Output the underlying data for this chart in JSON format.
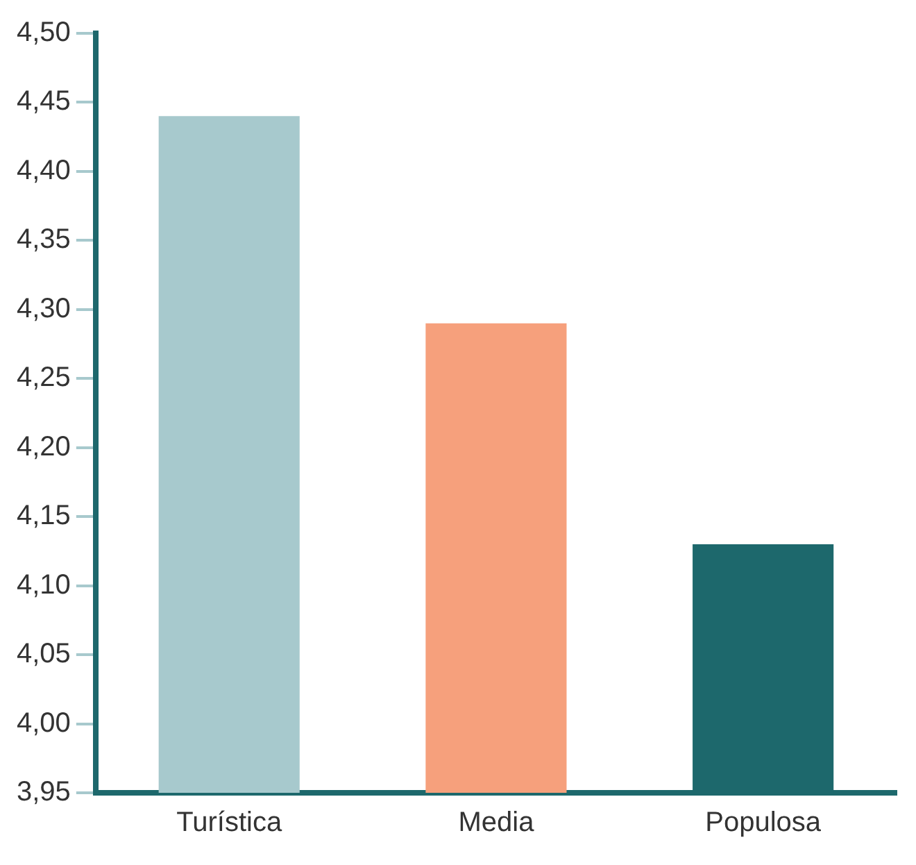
{
  "chart_data": {
    "type": "bar",
    "categories": [
      "Turística",
      "Media",
      "Populosa"
    ],
    "values": [
      4.44,
      4.29,
      4.13
    ],
    "colors": [
      "#a7c9cd",
      "#f6a07c",
      "#1d686c"
    ],
    "ylim": [
      3.95,
      4.5
    ],
    "yticks": [
      {
        "value": 3.95,
        "label": "3,95"
      },
      {
        "value": 4.0,
        "label": "4,00"
      },
      {
        "value": 4.05,
        "label": "4,05"
      },
      {
        "value": 4.1,
        "label": "4,10"
      },
      {
        "value": 4.15,
        "label": "4,15"
      },
      {
        "value": 4.2,
        "label": "4,20"
      },
      {
        "value": 4.25,
        "label": "4,25"
      },
      {
        "value": 4.3,
        "label": "4,30"
      },
      {
        "value": 4.35,
        "label": "4,35"
      },
      {
        "value": 4.4,
        "label": "4,40"
      },
      {
        "value": 4.45,
        "label": "4,45"
      },
      {
        "value": 4.5,
        "label": "4,50"
      }
    ],
    "grid": false,
    "legend": false
  }
}
